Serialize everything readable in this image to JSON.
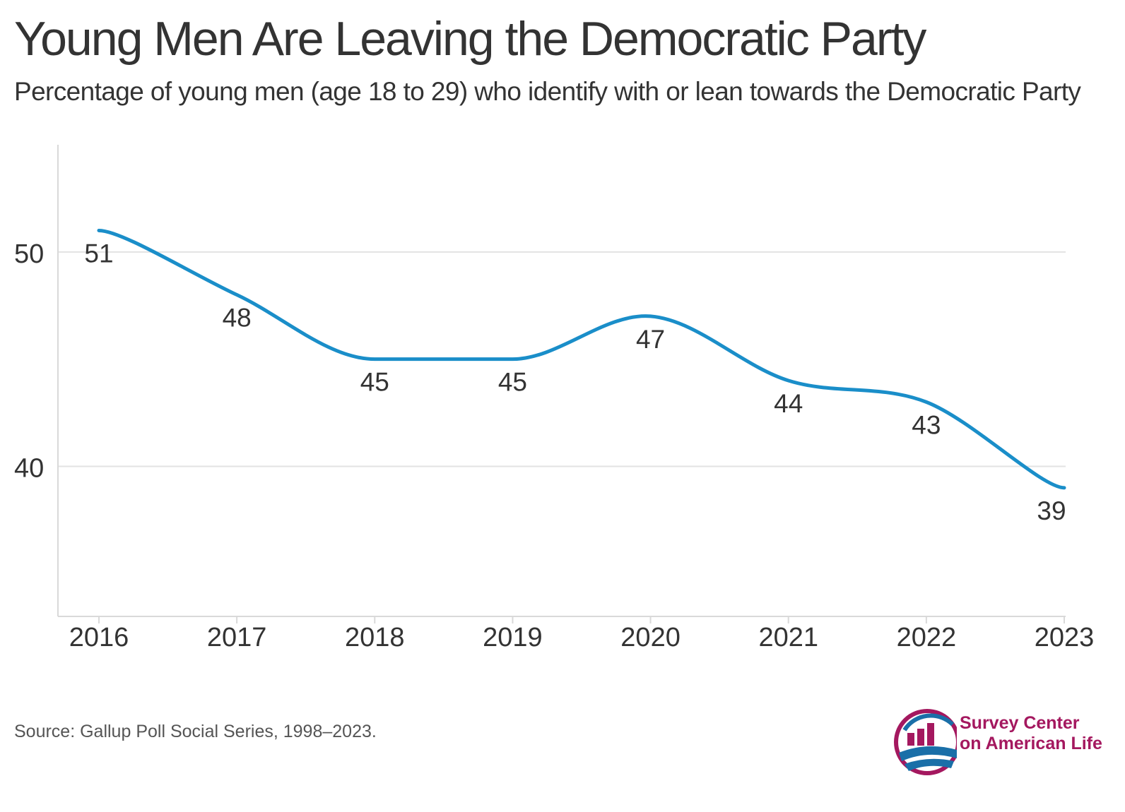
{
  "title": "Young Men Are Leaving the Democratic Party",
  "subtitle": "Percentage of young men (age 18 to 29) who identify with or lean towards the Democratic Party",
  "source": "Source: Gallup Poll Social Series, 1998–2023.",
  "logo": {
    "line1": "Survey Center",
    "line2": "on American Life"
  },
  "colors": {
    "line": "#1a8ec9",
    "grid": "#e3e3e3",
    "axis": "#d9d9d9",
    "text": "#333333",
    "logo_accent": "#a4185f",
    "logo_blue": "#1a6fa8"
  },
  "chart_data": {
    "type": "line",
    "title": "Young Men Are Leaving the Democratic Party",
    "xlabel": "",
    "ylabel": "",
    "categories": [
      "2016",
      "2017",
      "2018",
      "2019",
      "2020",
      "2021",
      "2022",
      "2023"
    ],
    "series": [
      {
        "values": [
          51,
          48,
          45,
          45,
          47,
          44,
          43,
          39
        ]
      }
    ],
    "y_ticks": [
      40,
      50
    ],
    "ylim": [
      33,
      55
    ],
    "grid": true,
    "legend": "none",
    "data_labels": true
  }
}
